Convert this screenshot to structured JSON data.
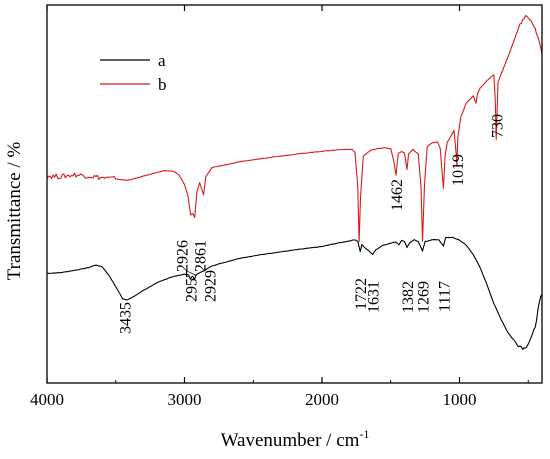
{
  "chart_data": {
    "type": "line",
    "xlabel": "Wavenumber / cm",
    "xlabel_superscript": "-1",
    "ylabel": "Transmittance / %",
    "x_reversed": true,
    "xlim": [
      4000,
      400
    ],
    "ylim": [
      0,
      100
    ],
    "x_ticks": [
      "4000",
      "3000",
      "2000",
      "1000"
    ],
    "x_tick_values": [
      4000,
      3000,
      2000,
      1000
    ],
    "y_tick_labels_shown": false,
    "grid": false,
    "legend_position": "top-left",
    "series": [
      {
        "name": "a",
        "color": "#000000",
        "points": [
          [
            4000,
            29.0
          ],
          [
            3900,
            29.2
          ],
          [
            3800,
            29.8
          ],
          [
            3700,
            30.5
          ],
          [
            3650,
            31.2
          ],
          [
            3600,
            30.8
          ],
          [
            3550,
            28.5
          ],
          [
            3500,
            25.5
          ],
          [
            3450,
            22.3
          ],
          [
            3420,
            22.0
          ],
          [
            3380,
            22.6
          ],
          [
            3300,
            24.5
          ],
          [
            3200,
            26.5
          ],
          [
            3100,
            28.0
          ],
          [
            3000,
            28.8
          ],
          [
            2970,
            28.6
          ],
          [
            2957,
            27.4
          ],
          [
            2945,
            28.2
          ],
          [
            2935,
            28.0
          ],
          [
            2929,
            27.3
          ],
          [
            2915,
            28.6
          ],
          [
            2880,
            29.4
          ],
          [
            2861,
            29.6
          ],
          [
            2800,
            31.0
          ],
          [
            2600,
            33.0
          ],
          [
            2400,
            34.2
          ],
          [
            2200,
            35.2
          ],
          [
            2000,
            36.1
          ],
          [
            1900,
            36.9
          ],
          [
            1800,
            37.6
          ],
          [
            1760,
            37.9
          ],
          [
            1740,
            37.5
          ],
          [
            1722,
            34.8
          ],
          [
            1710,
            36.6
          ],
          [
            1690,
            35.8
          ],
          [
            1660,
            35.0
          ],
          [
            1631,
            34.0
          ],
          [
            1610,
            35.2
          ],
          [
            1560,
            36.4
          ],
          [
            1500,
            37.0
          ],
          [
            1462,
            37.3
          ],
          [
            1440,
            36.6
          ],
          [
            1420,
            37.8
          ],
          [
            1400,
            37.4
          ],
          [
            1382,
            35.9
          ],
          [
            1360,
            37.2
          ],
          [
            1330,
            37.9
          ],
          [
            1300,
            37.4
          ],
          [
            1269,
            34.9
          ],
          [
            1250,
            37.4
          ],
          [
            1200,
            37.9
          ],
          [
            1150,
            37.9
          ],
          [
            1117,
            36.2
          ],
          [
            1100,
            38.5
          ],
          [
            1050,
            38.5
          ],
          [
            1000,
            37.8
          ],
          [
            950,
            36.4
          ],
          [
            900,
            34.0
          ],
          [
            850,
            30.5
          ],
          [
            800,
            26.0
          ],
          [
            750,
            21.0
          ],
          [
            700,
            17.0
          ],
          [
            650,
            13.5
          ],
          [
            600,
            11.0
          ],
          [
            560,
            9.8
          ],
          [
            530,
            9.2
          ],
          [
            500,
            10.5
          ],
          [
            470,
            12.5
          ],
          [
            450,
            15.0
          ],
          [
            430,
            19.0
          ],
          [
            410,
            22.5
          ],
          [
            400,
            23.5
          ]
        ]
      },
      {
        "name": "b",
        "color": "#d81a1a",
        "points": [
          [
            4000,
            54.8
          ],
          [
            3900,
            54.6
          ],
          [
            3800,
            55.1
          ],
          [
            3700,
            54.8
          ],
          [
            3600,
            54.3
          ],
          [
            3500,
            54.0
          ],
          [
            3420,
            53.6
          ],
          [
            3350,
            54.2
          ],
          [
            3250,
            55.2
          ],
          [
            3150,
            56.2
          ],
          [
            3080,
            56.0
          ],
          [
            3040,
            55.0
          ],
          [
            3000,
            52.5
          ],
          [
            2975,
            49.5
          ],
          [
            2955,
            44.5
          ],
          [
            2940,
            44.8
          ],
          [
            2926,
            43.8
          ],
          [
            2910,
            50.5
          ],
          [
            2890,
            53.0
          ],
          [
            2872,
            51.0
          ],
          [
            2861,
            49.8
          ],
          [
            2845,
            54.5
          ],
          [
            2800,
            57.0
          ],
          [
            2600,
            58.5
          ],
          [
            2400,
            59.6
          ],
          [
            2200,
            60.5
          ],
          [
            2000,
            61.3
          ],
          [
            1850,
            61.8
          ],
          [
            1780,
            61.8
          ],
          [
            1760,
            61.0
          ],
          [
            1740,
            52.0
          ],
          [
            1730,
            37.4
          ],
          [
            1720,
            49.0
          ],
          [
            1700,
            60.0
          ],
          [
            1650,
            61.5
          ],
          [
            1600,
            62.0
          ],
          [
            1550,
            62.2
          ],
          [
            1500,
            62.0
          ],
          [
            1480,
            59.0
          ],
          [
            1462,
            55.0
          ],
          [
            1445,
            60.8
          ],
          [
            1420,
            61.2
          ],
          [
            1400,
            60.8
          ],
          [
            1382,
            56.5
          ],
          [
            1370,
            60.6
          ],
          [
            1340,
            61.8
          ],
          [
            1300,
            60.5
          ],
          [
            1280,
            52.0
          ],
          [
            1269,
            37.6
          ],
          [
            1255,
            52.0
          ],
          [
            1235,
            62.5
          ],
          [
            1200,
            63.5
          ],
          [
            1160,
            63.8
          ],
          [
            1140,
            62.0
          ],
          [
            1125,
            55.0
          ],
          [
            1117,
            51.5
          ],
          [
            1105,
            60.0
          ],
          [
            1090,
            63.5
          ],
          [
            1060,
            65.5
          ],
          [
            1040,
            66.8
          ],
          [
            1025,
            61.0
          ],
          [
            1019,
            57.4
          ],
          [
            1012,
            65.0
          ],
          [
            990,
            70.5
          ],
          [
            950,
            74.0
          ],
          [
            900,
            76.0
          ],
          [
            880,
            74.0
          ],
          [
            870,
            76.5
          ],
          [
            850,
            78.0
          ],
          [
            800,
            80.0
          ],
          [
            770,
            81.0
          ],
          [
            750,
            81.5
          ],
          [
            740,
            75.0
          ],
          [
            733,
            64.4
          ],
          [
            728,
            70.0
          ],
          [
            720,
            79.5
          ],
          [
            700,
            81.5
          ],
          [
            650,
            86.0
          ],
          [
            600,
            91.0
          ],
          [
            560,
            95.0
          ],
          [
            520,
            96.8
          ],
          [
            500,
            96.8
          ],
          [
            480,
            96.0
          ],
          [
            460,
            94.5
          ],
          [
            440,
            92.5
          ],
          [
            420,
            90.0
          ],
          [
            405,
            88.0
          ],
          [
            400,
            87.0
          ]
        ]
      }
    ],
    "annotations_a": [
      {
        "text": "3435",
        "x": 3435
      },
      {
        "text": "2957",
        "x": 2957
      },
      {
        "text": "2929",
        "x": 2929
      },
      {
        "text": "1722",
        "x": 1722
      },
      {
        "text": "1631",
        "x": 1631
      },
      {
        "text": "1382",
        "x": 1382
      },
      {
        "text": "1269",
        "x": 1269
      },
      {
        "text": "1117",
        "x": 1117
      }
    ],
    "annotations_b": [
      {
        "text": "2926",
        "x": 2926
      },
      {
        "text": "2861",
        "x": 2861
      },
      {
        "text": "1462",
        "x": 1462
      },
      {
        "text": "1019",
        "x": 1019
      },
      {
        "text": "730",
        "x": 730
      }
    ]
  }
}
